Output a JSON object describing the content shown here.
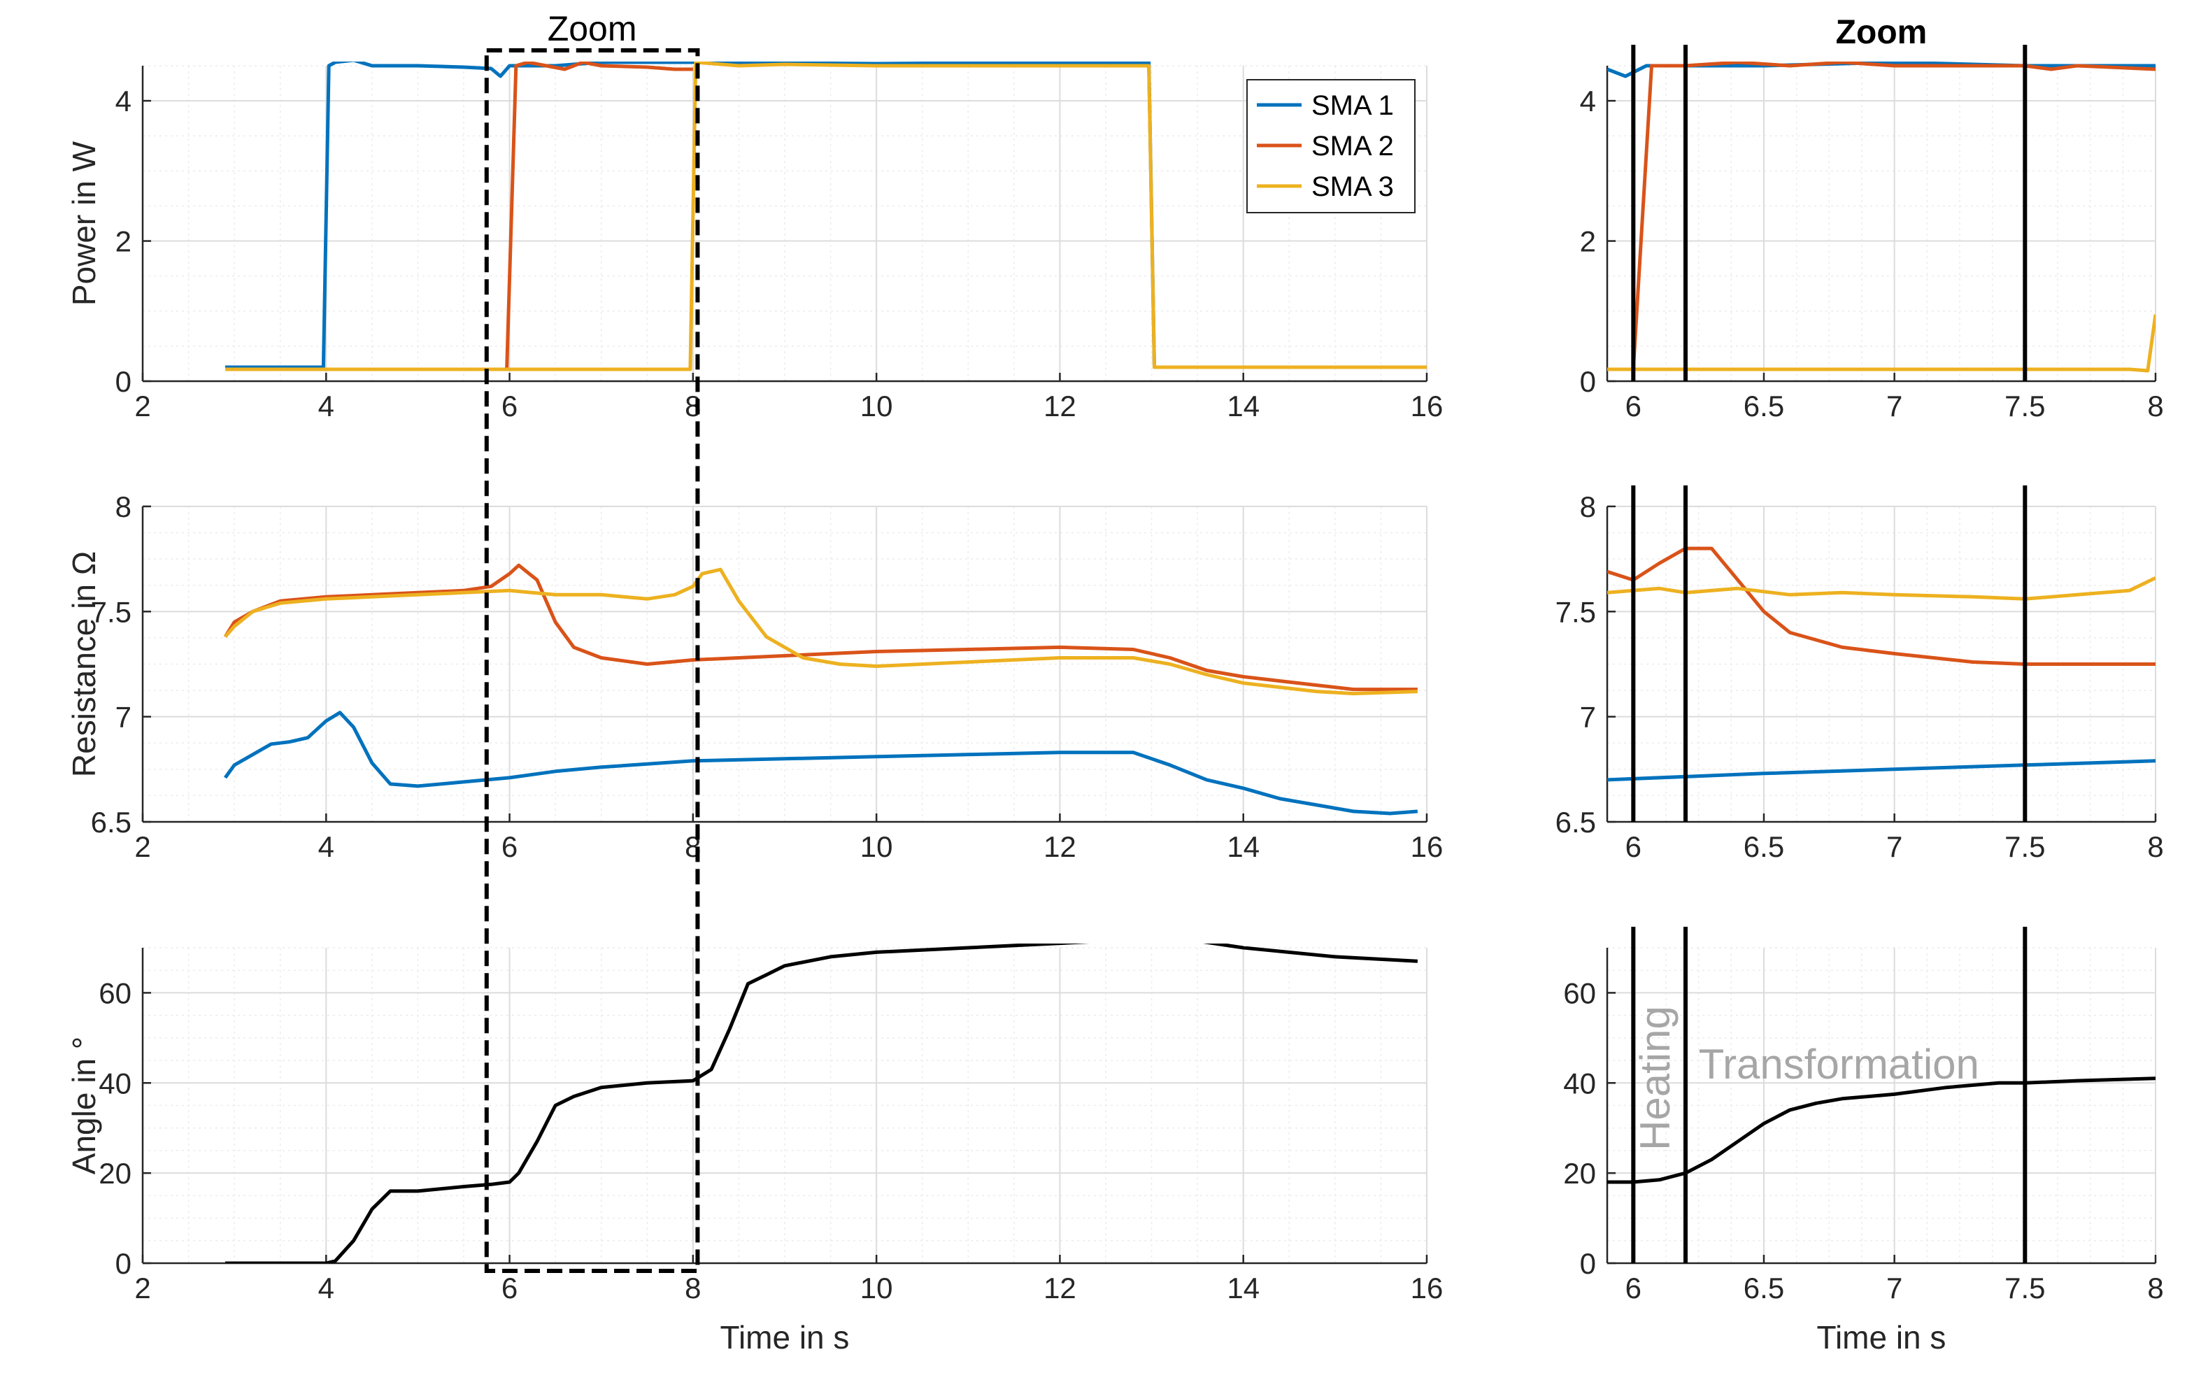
{
  "colors": {
    "sma1": "#0072BD",
    "sma2": "#D95319",
    "sma3": "#EDB120",
    "angle": "#000000",
    "grid": "#dcdcdc",
    "axis": "#262626",
    "annotation": "#a6a6a6"
  },
  "chart_data": [
    {
      "id": "left-power",
      "type": "line",
      "title": "Zoom",
      "xlabel": "",
      "ylabel": "Power in W",
      "xlim": [
        2,
        16
      ],
      "ylim": [
        0,
        4.5
      ],
      "xticks": [
        2,
        4,
        6,
        8,
        10,
        12,
        14,
        16
      ],
      "yticks": [
        0,
        2,
        4
      ],
      "grid": true,
      "legend": "top-right",
      "series": [
        {
          "name": "SMA 1",
          "color": "sma1",
          "x": [
            2.9,
            3.97,
            4.03,
            4.1,
            4.3,
            4.5,
            4.7,
            5.0,
            5.5,
            5.8,
            5.9,
            6.0,
            6.5,
            7.0,
            8.0,
            10,
            12,
            12.97,
            13.03,
            14,
            16
          ],
          "y": [
            0.2,
            0.2,
            4.5,
            4.55,
            4.58,
            4.5,
            4.5,
            4.5,
            4.48,
            4.46,
            4.35,
            4.5,
            4.5,
            4.55,
            4.55,
            4.53,
            4.55,
            4.55,
            0.2,
            0.2,
            0.2
          ]
        },
        {
          "name": "SMA 2",
          "color": "sma2",
          "x": [
            2.9,
            5.97,
            6.07,
            6.2,
            6.4,
            6.6,
            6.8,
            7.0,
            7.5,
            7.8,
            8.0
          ],
          "y": [
            0.17,
            0.17,
            4.5,
            4.55,
            4.5,
            4.45,
            4.55,
            4.5,
            4.48,
            4.45,
            4.45
          ]
        },
        {
          "name": "SMA 3",
          "color": "sma3",
          "x": [
            2.9,
            7.97,
            8.03,
            8.5,
            9.0,
            10,
            11,
            12,
            12.97,
            13.03,
            14,
            16
          ],
          "y": [
            0.17,
            0.17,
            4.55,
            4.5,
            4.52,
            4.5,
            4.5,
            4.5,
            4.5,
            0.2,
            0.2,
            0.2
          ]
        }
      ]
    },
    {
      "id": "left-resistance",
      "type": "line",
      "xlabel": "",
      "ylabel": "Resistance in Ω",
      "xlim": [
        2,
        16
      ],
      "ylim": [
        6.5,
        8
      ],
      "xticks": [
        2,
        4,
        6,
        8,
        10,
        12,
        14,
        16
      ],
      "yticks": [
        6.5,
        7,
        7.5,
        8
      ],
      "grid": true,
      "series": [
        {
          "name": "SMA 1",
          "color": "sma1",
          "x": [
            2.9,
            3.0,
            3.2,
            3.4,
            3.6,
            3.8,
            4.0,
            4.15,
            4.3,
            4.5,
            4.7,
            5.0,
            5.5,
            6.0,
            6.5,
            7.0,
            8.0,
            9.0,
            10,
            11,
            12,
            12.8,
            13.2,
            13.6,
            14,
            14.4,
            14.8,
            15.2,
            15.6,
            15.9
          ],
          "y": [
            6.71,
            6.77,
            6.82,
            6.87,
            6.88,
            6.9,
            6.98,
            7.02,
            6.95,
            6.78,
            6.68,
            6.67,
            6.69,
            6.71,
            6.74,
            6.76,
            6.79,
            6.8,
            6.81,
            6.82,
            6.83,
            6.83,
            6.77,
            6.7,
            6.66,
            6.61,
            6.58,
            6.55,
            6.54,
            6.55
          ]
        },
        {
          "name": "SMA 2",
          "color": "sma2",
          "x": [
            2.9,
            3.0,
            3.2,
            3.5,
            4.0,
            4.5,
            5.0,
            5.5,
            5.8,
            6.0,
            6.1,
            6.3,
            6.5,
            6.7,
            7.0,
            7.5,
            8.0,
            9.0,
            10,
            11,
            12,
            12.8,
            13.2,
            13.6,
            14,
            14.4,
            14.8,
            15.2,
            15.9
          ],
          "y": [
            7.38,
            7.45,
            7.5,
            7.55,
            7.57,
            7.58,
            7.59,
            7.6,
            7.62,
            7.68,
            7.72,
            7.65,
            7.45,
            7.33,
            7.28,
            7.25,
            7.27,
            7.29,
            7.31,
            7.32,
            7.33,
            7.32,
            7.28,
            7.22,
            7.19,
            7.17,
            7.15,
            7.13,
            7.13
          ]
        },
        {
          "name": "SMA 3",
          "color": "sma3",
          "x": [
            2.9,
            3.0,
            3.2,
            3.5,
            4.0,
            4.5,
            5.0,
            5.5,
            6.0,
            6.5,
            7.0,
            7.5,
            7.8,
            8.0,
            8.1,
            8.3,
            8.5,
            8.8,
            9.2,
            9.6,
            10,
            11,
            12,
            12.8,
            13.2,
            13.6,
            14,
            14.4,
            14.8,
            15.2,
            15.9
          ],
          "y": [
            7.38,
            7.43,
            7.5,
            7.54,
            7.56,
            7.57,
            7.58,
            7.59,
            7.6,
            7.58,
            7.58,
            7.56,
            7.58,
            7.62,
            7.68,
            7.7,
            7.55,
            7.38,
            7.28,
            7.25,
            7.24,
            7.26,
            7.28,
            7.28,
            7.25,
            7.2,
            7.16,
            7.14,
            7.12,
            7.11,
            7.12
          ]
        }
      ]
    },
    {
      "id": "left-angle",
      "type": "line",
      "xlabel": "Time in s",
      "ylabel": "Angle in °",
      "xlim": [
        2,
        16
      ],
      "ylim": [
        0,
        70
      ],
      "xticks": [
        2,
        4,
        6,
        8,
        10,
        12,
        14,
        16
      ],
      "yticks": [
        0,
        20,
        40,
        60
      ],
      "grid": true,
      "series": [
        {
          "name": "",
          "color": "angle",
          "x": [
            2.9,
            4.0,
            4.1,
            4.3,
            4.5,
            4.7,
            5.0,
            5.5,
            5.8,
            6.0,
            6.1,
            6.3,
            6.5,
            6.7,
            7.0,
            7.5,
            8.0,
            8.2,
            8.4,
            8.6,
            8.8,
            9.0,
            9.5,
            10,
            11,
            12,
            13,
            13.5,
            14,
            15,
            15.9
          ],
          "y": [
            0,
            0,
            0.5,
            5,
            12,
            16,
            16,
            17,
            17.5,
            18,
            20,
            27,
            35,
            37,
            39,
            40,
            40.5,
            43,
            52,
            62,
            64,
            66,
            68,
            69,
            70,
            71,
            72,
            71.5,
            70,
            68,
            67
          ]
        }
      ]
    },
    {
      "id": "right-power",
      "type": "line",
      "title": "Zoom",
      "xlabel": "",
      "ylabel": "",
      "xlim": [
        5.9,
        8
      ],
      "ylim": [
        0,
        4.5
      ],
      "xticks": [
        6,
        6.5,
        7,
        7.5,
        8
      ],
      "xticklabels": [
        "6",
        "6.5",
        "7",
        "7.5",
        "8"
      ],
      "yticks": [
        0,
        2,
        4
      ],
      "grid": true,
      "series": [
        {
          "name": "SMA 1",
          "color": "sma1",
          "x": [
            5.9,
            5.97,
            6.05,
            6.2,
            6.5,
            7.0,
            7.5,
            8.0
          ],
          "y": [
            4.45,
            4.35,
            4.5,
            4.5,
            4.5,
            4.55,
            4.5,
            4.5
          ]
        },
        {
          "name": "SMA 2",
          "color": "sma2",
          "x": [
            5.9,
            6.0,
            6.07,
            6.2,
            6.4,
            6.6,
            6.8,
            7.0,
            7.5,
            7.6,
            7.7,
            8.0
          ],
          "y": [
            0.17,
            0.17,
            4.5,
            4.5,
            4.55,
            4.5,
            4.55,
            4.5,
            4.5,
            4.45,
            4.5,
            4.45
          ]
        },
        {
          "name": "SMA 3",
          "color": "sma3",
          "x": [
            5.9,
            7.5,
            7.9,
            7.97,
            8.0
          ],
          "y": [
            0.17,
            0.17,
            0.17,
            0.15,
            0.95
          ]
        }
      ]
    },
    {
      "id": "right-resistance",
      "type": "line",
      "xlabel": "",
      "ylabel": "",
      "xlim": [
        5.9,
        8
      ],
      "ylim": [
        6.5,
        8
      ],
      "xticks": [
        6,
        6.5,
        7,
        7.5,
        8
      ],
      "xticklabels": [
        "6",
        "6.5",
        "7",
        "7.5",
        "8"
      ],
      "yticks": [
        6.5,
        7,
        7.5,
        8
      ],
      "grid": true,
      "series": [
        {
          "name": "SMA 1",
          "color": "sma1",
          "x": [
            5.9,
            6.5,
            7.0,
            7.5,
            8.0
          ],
          "y": [
            6.7,
            6.73,
            6.75,
            6.77,
            6.79
          ]
        },
        {
          "name": "SMA 2",
          "color": "sma2",
          "x": [
            5.9,
            6.0,
            6.1,
            6.2,
            6.3,
            6.4,
            6.5,
            6.6,
            6.8,
            7.0,
            7.3,
            7.5,
            7.8,
            8.0
          ],
          "y": [
            7.69,
            7.65,
            7.73,
            7.8,
            7.8,
            7.65,
            7.5,
            7.4,
            7.33,
            7.3,
            7.26,
            7.25,
            7.25,
            7.25
          ]
        },
        {
          "name": "SMA 3",
          "color": "sma3",
          "x": [
            5.9,
            6.0,
            6.1,
            6.2,
            6.4,
            6.6,
            6.8,
            7.0,
            7.3,
            7.5,
            7.7,
            7.9,
            8.0
          ],
          "y": [
            7.59,
            7.6,
            7.61,
            7.59,
            7.61,
            7.58,
            7.59,
            7.58,
            7.57,
            7.56,
            7.58,
            7.6,
            7.66
          ]
        }
      ]
    },
    {
      "id": "right-angle",
      "type": "line",
      "xlabel": "Time in s",
      "ylabel": "",
      "xlim": [
        5.9,
        8
      ],
      "ylim": [
        0,
        70
      ],
      "xticks": [
        6,
        6.5,
        7,
        7.5,
        8
      ],
      "xticklabels": [
        "6",
        "6.5",
        "7",
        "7.5",
        "8"
      ],
      "yticks": [
        0,
        20,
        40,
        60
      ],
      "grid": true,
      "series": [
        {
          "name": "",
          "color": "angle",
          "x": [
            5.9,
            6.0,
            6.1,
            6.2,
            6.3,
            6.4,
            6.5,
            6.6,
            6.7,
            6.8,
            7.0,
            7.2,
            7.4,
            7.5,
            7.7,
            8.0
          ],
          "y": [
            18,
            18,
            18.5,
            20,
            23,
            27,
            31,
            34,
            35.5,
            36.5,
            37.5,
            39,
            40,
            40,
            40.5,
            41
          ]
        }
      ],
      "vlines": [
        6.0,
        6.2,
        7.5
      ],
      "annotations": [
        {
          "text": "Heating",
          "x": 6.02,
          "y": 25,
          "rotate": true
        },
        {
          "text": "Transformation",
          "x": 6.25,
          "y": 41,
          "rotate": false
        }
      ]
    }
  ],
  "legend": {
    "entries": [
      {
        "name": "SMA 1",
        "color": "sma1"
      },
      {
        "name": "SMA 2",
        "color": "sma2"
      },
      {
        "name": "SMA 3",
        "color": "sma3"
      }
    ]
  },
  "zoom_box": {
    "x0": 5.75,
    "x1": 8.05
  }
}
